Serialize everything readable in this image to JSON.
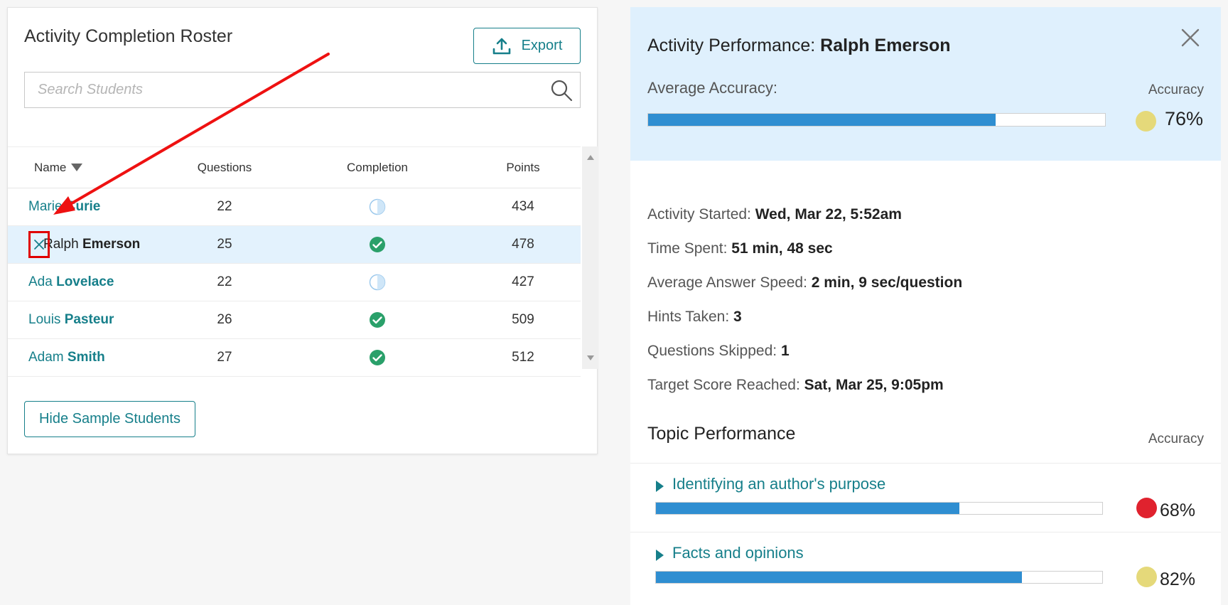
{
  "roster": {
    "title": "Activity Completion Roster",
    "export_label": "Export",
    "search_placeholder": "Search Students",
    "columns": {
      "name": "Name",
      "questions": "Questions",
      "completion": "Completion",
      "points": "Points"
    },
    "students": [
      {
        "first": "Marie",
        "last": "Curie",
        "questions": "22",
        "completion": "partial",
        "points": "434"
      },
      {
        "first": "Ralph",
        "last": "Emerson",
        "questions": "25",
        "completion": "complete",
        "points": "478"
      },
      {
        "first": "Ada",
        "last": "Lovelace",
        "questions": "22",
        "completion": "partial",
        "points": "427"
      },
      {
        "first": "Louis",
        "last": "Pasteur",
        "questions": "26",
        "completion": "complete",
        "points": "509"
      },
      {
        "first": "Adam",
        "last": "Smith",
        "questions": "27",
        "completion": "complete",
        "points": "512"
      }
    ],
    "hide_label": "Hide Sample Students"
  },
  "panel": {
    "title_prefix": "Activity Performance: ",
    "student_name": "Ralph Emerson",
    "avg_label": "Average Accuracy:",
    "accuracy_label": "Accuracy",
    "avg_value": 0.76,
    "avg_pct": "76%",
    "avg_color": "#e5d97a",
    "details": [
      {
        "label": "Activity Started: ",
        "value": "Wed, Mar 22, 5:52am"
      },
      {
        "label": "Time Spent: ",
        "value": "51 min, 48 sec"
      },
      {
        "label": "Average Answer Speed: ",
        "value": "2 min, 9 sec/question"
      },
      {
        "label": "Hints Taken: ",
        "value": "3"
      },
      {
        "label": "Questions Skipped: ",
        "value": "1"
      },
      {
        "label": "Target Score Reached: ",
        "value": "Sat, Mar 25, 9:05pm"
      }
    ],
    "topic_title": "Topic Performance",
    "topic_accuracy_label": "Accuracy",
    "topics": [
      {
        "name": "Identifying an author's purpose",
        "value": 0.68,
        "pct": "68%",
        "color": "#e0222e"
      },
      {
        "name": "Facts and opinions",
        "value": 0.82,
        "pct": "82%",
        "color": "#e5d97a"
      }
    ]
  },
  "colors": {
    "accent": "#167f8a",
    "bar": "#2f8ed1",
    "selected_row": "#e3f2fd",
    "header_bg": "#dff0fd",
    "complete": "#2aa06a"
  }
}
